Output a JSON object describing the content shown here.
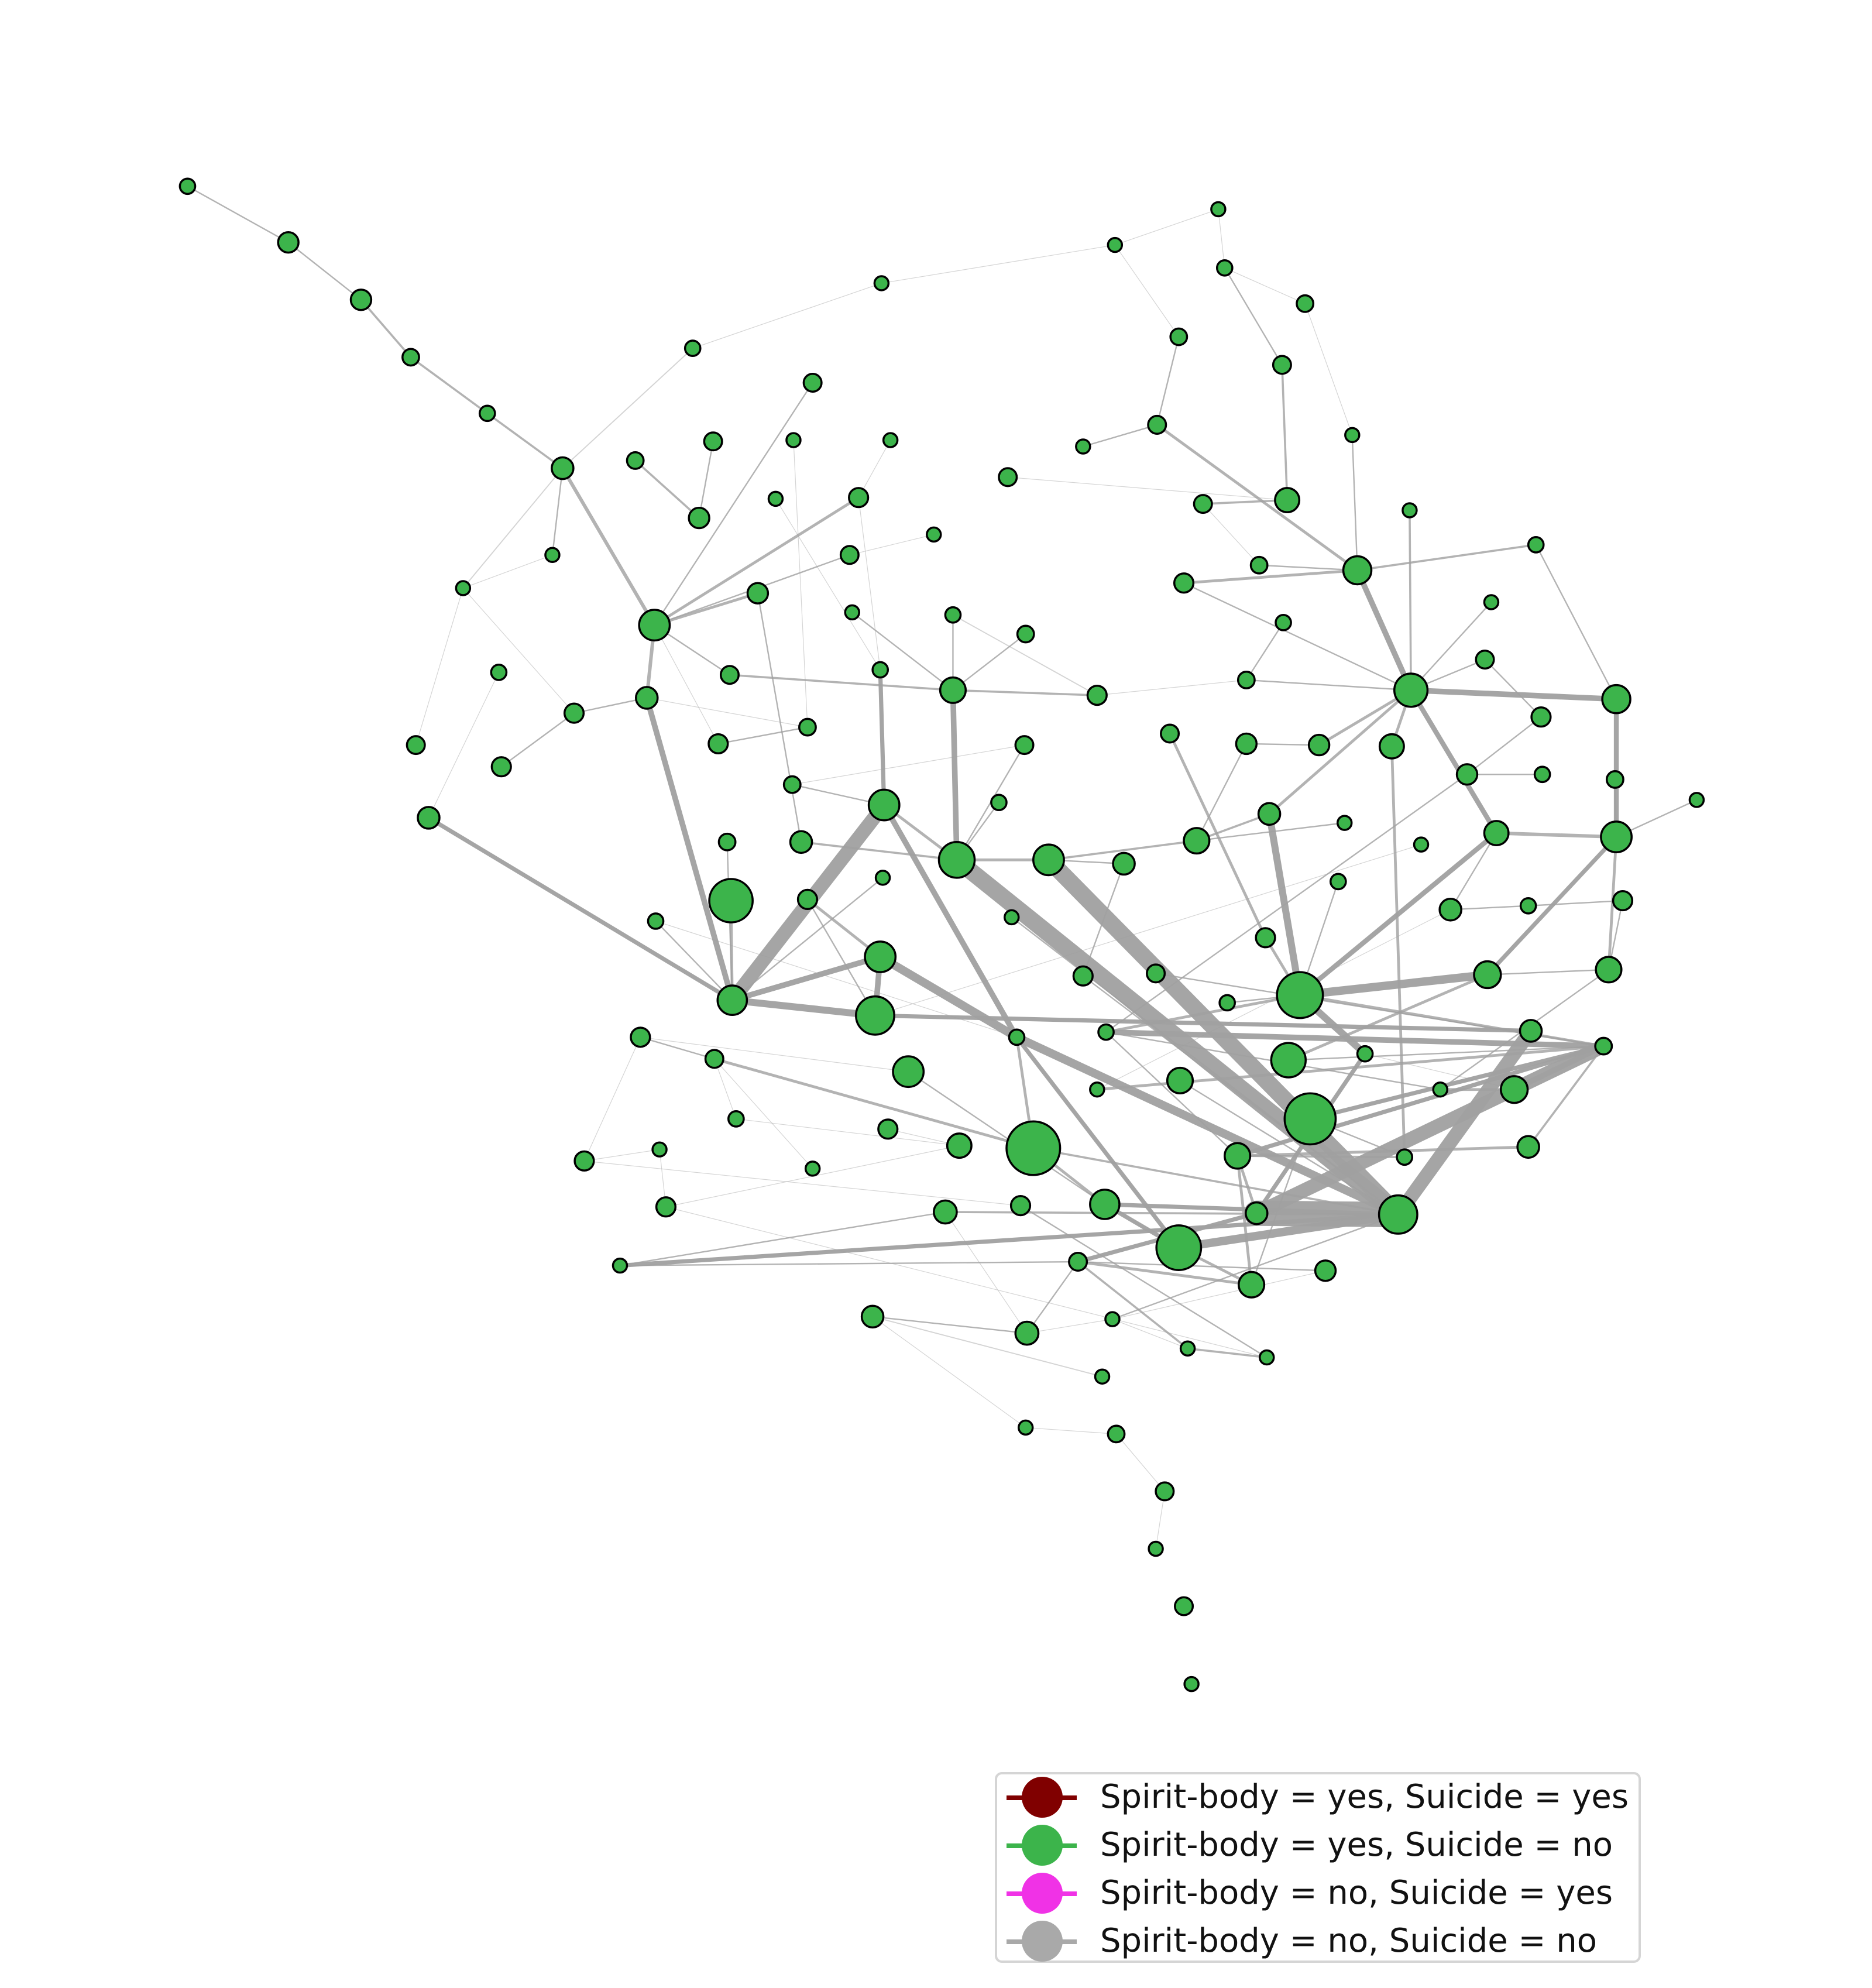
{
  "colors": {
    "edge": "#a0a0a0",
    "node_fill": "#3cb44b",
    "node_stroke": "#000000",
    "legend": [
      "#800000",
      "#3cb44b",
      "#f032e6",
      "#a9a9a9"
    ]
  },
  "legend": {
    "entries": [
      {
        "label": "Spirit-body = yes, Suicide = yes",
        "color": "#800000"
      },
      {
        "label": "Spirit-body = yes, Suicide = no",
        "color": "#3cb44b"
      },
      {
        "label": "Spirit-body = no, Suicide = yes",
        "color": "#f032e6"
      },
      {
        "label": "Spirit-body = no, Suicide = no",
        "color": "#a9a9a9"
      }
    ]
  },
  "network": {
    "node_category": "Spirit-body = yes, Suicide = no",
    "node_count": 172
  }
}
